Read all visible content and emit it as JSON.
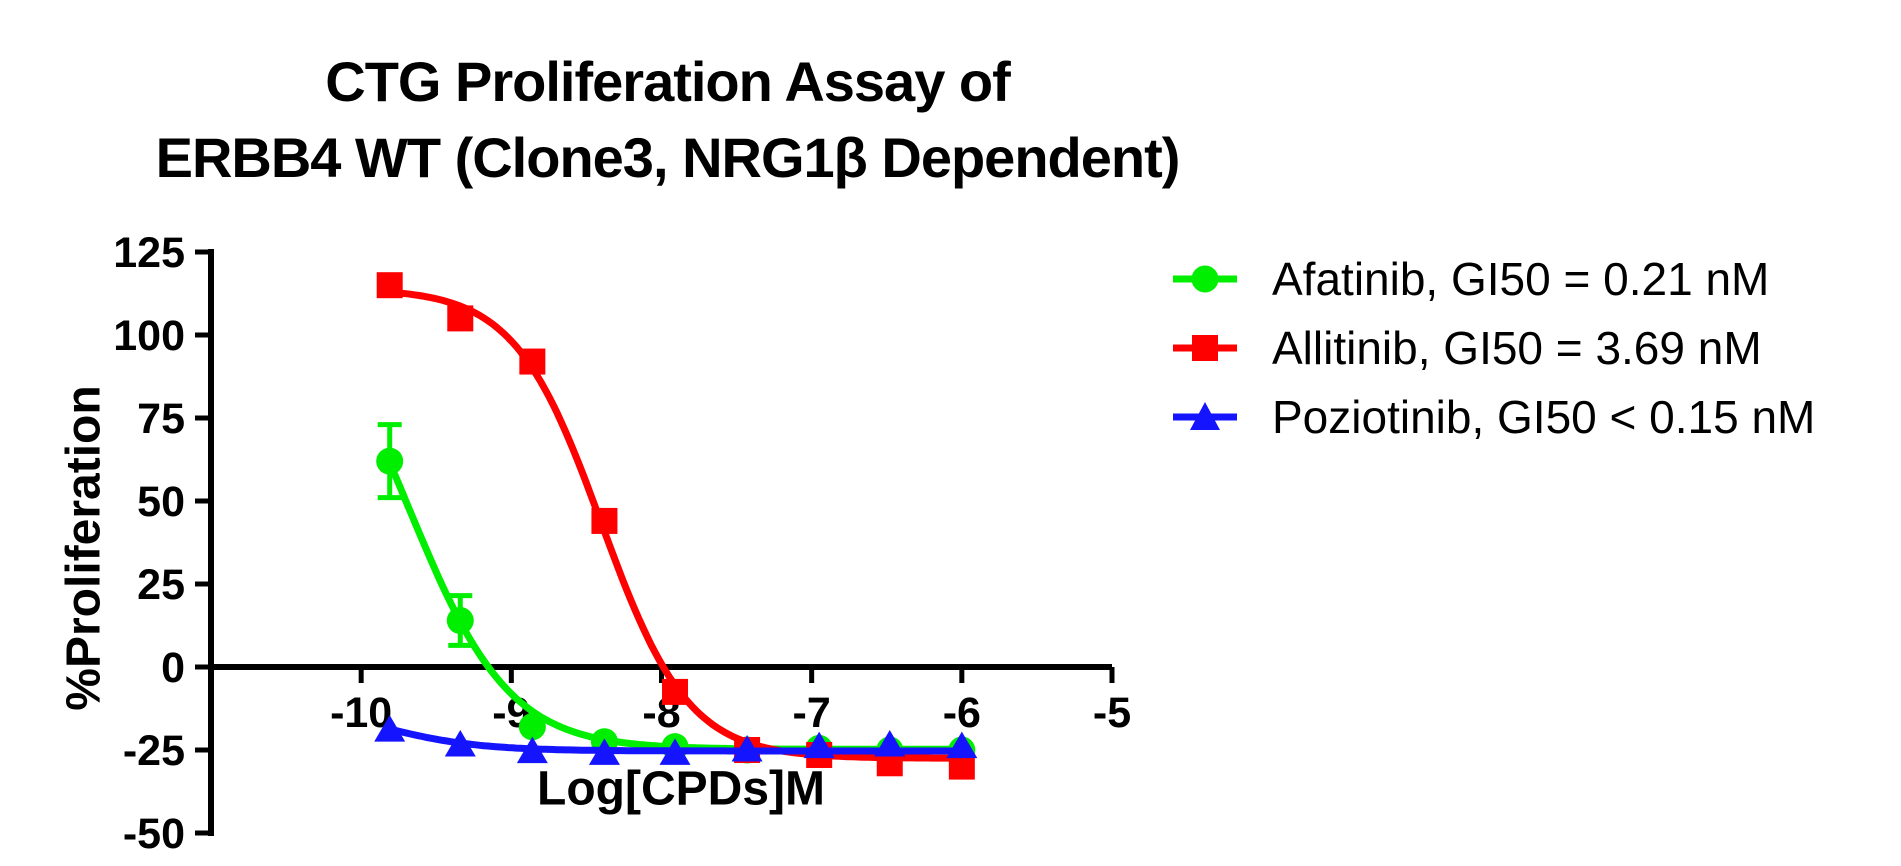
{
  "title": {
    "line1": "CTG Proliferation Assay of",
    "line2": "ERBB4 WT (Clone3, NRG1β Dependent)"
  },
  "chart_data": {
    "type": "line",
    "title": "CTG Proliferation Assay of ERBB4 WT (Clone3, NRG1β Dependent)",
    "xlabel": "Log[CPDs]M",
    "ylabel": "%Proliferation",
    "xlim": [
      -11,
      -5
    ],
    "ylim": [
      -50,
      125
    ],
    "xticks": [
      -10,
      -9,
      -8,
      -7,
      -6,
      -5
    ],
    "yticks": [
      125,
      100,
      75,
      50,
      25,
      0,
      -25,
      -50
    ],
    "grid": false,
    "legend_position": "right",
    "x": [
      -9.81,
      -9.34,
      -8.86,
      -8.38,
      -7.91,
      -7.43,
      -6.95,
      -6.48,
      -6.0
    ],
    "series": [
      {
        "name": "Afatinib",
        "legend": "Afatinib, GI50 = 0.21 nM",
        "gi50": "0.21 nM",
        "color": "#00ee00",
        "marker": "circle",
        "values": [
          62,
          14,
          -18,
          -22.5,
          -24,
          -25,
          -24.5,
          -25,
          -25
        ],
        "errors": [
          11,
          7.5,
          0,
          0,
          0,
          0,
          0,
          0,
          0
        ],
        "fit": {
          "top": 120,
          "bottom": -24.8,
          "logec50": -9.68,
          "hill": 1.3
        }
      },
      {
        "name": "Allitinib",
        "legend": "Allitinib, GI50 = 3.69 nM",
        "gi50": "3.69 nM",
        "color": "#ff0000",
        "marker": "square",
        "values": [
          115,
          105,
          92,
          44,
          -7.5,
          -25,
          -26.5,
          -29,
          -30
        ],
        "errors": [
          0,
          0,
          0,
          0,
          0,
          0,
          0,
          0,
          0
        ],
        "fit": {
          "top": 114,
          "bottom": -27.5,
          "logec50": -8.4,
          "hill": 1.5
        }
      },
      {
        "name": "Poziotinib",
        "legend": "Poziotinib, GI50 < 0.15 nM",
        "gi50": "< 0.15 nM",
        "color": "#1414ff",
        "marker": "triangle",
        "values": [
          -19,
          -23.5,
          -25.5,
          -26,
          -26,
          -25,
          -24,
          -23.5,
          -24
        ],
        "errors": [
          0,
          0,
          0,
          0,
          0,
          0,
          0,
          0,
          0
        ],
        "fit": {
          "top": -10,
          "bottom": -25.3,
          "logec50": -9.9,
          "hill": 1.3
        }
      }
    ]
  }
}
